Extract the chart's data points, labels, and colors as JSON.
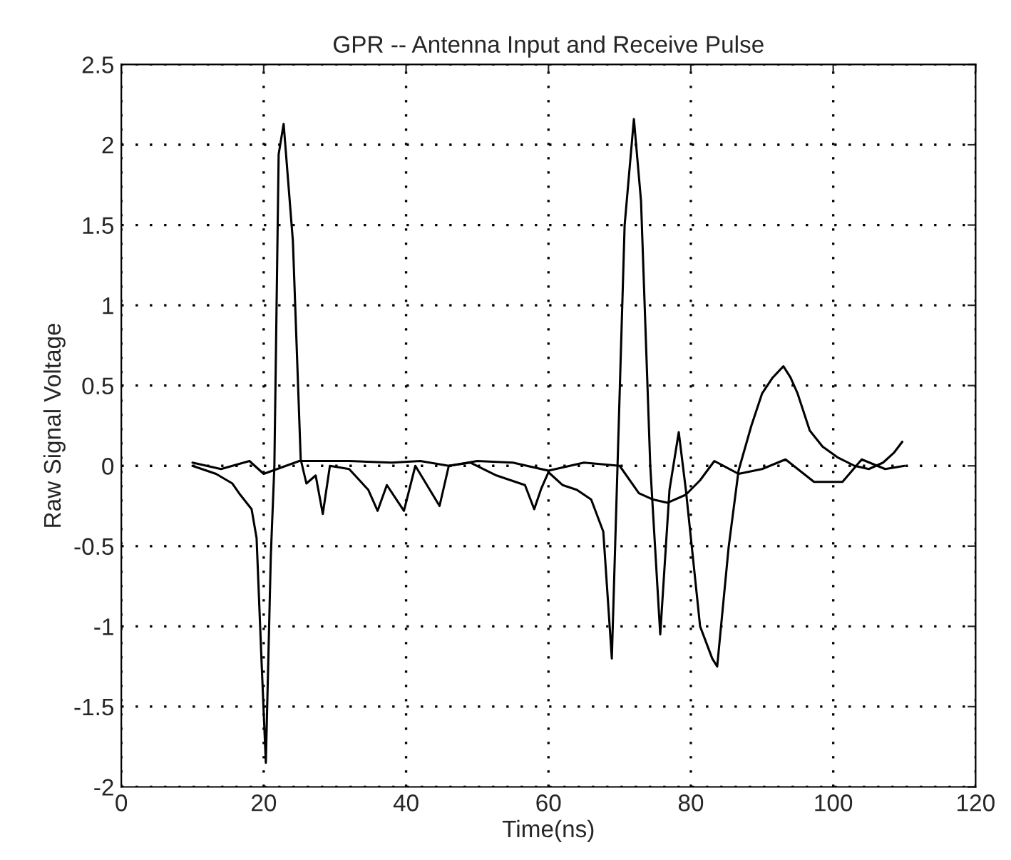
{
  "chart_data": {
    "type": "line",
    "title": "GPR -- Antenna Input and Receive Pulse",
    "xlabel": "Time(ns)",
    "ylabel": "Raw Signal Voltage",
    "xlim": [
      0,
      120
    ],
    "xticks": [
      0,
      20,
      40,
      60,
      80,
      100,
      120
    ],
    "ylim": [
      -2,
      2.5
    ],
    "yticks": [
      -2,
      -1.5,
      -1,
      -0.5,
      0,
      0.5,
      1,
      1.5,
      2,
      2.5
    ],
    "grid": true,
    "line_style": "solid",
    "marker": "none",
    "legend": false,
    "series": [
      {
        "color": "#000000",
        "x": [
          10,
          13.3,
          15.6,
          16.7,
          18.3,
          19,
          19.7,
          20.3,
          21,
          21.5,
          22.1,
          22.8,
          24.1,
          25.2,
          26,
          27.3,
          28.3,
          29.3,
          32,
          34.7,
          36,
          37.3,
          39.7,
          41.3,
          44.7,
          46,
          49,
          52.7,
          56.7,
          58,
          59,
          60,
          62,
          64,
          66,
          67.7,
          68.9,
          69.7,
          70.7,
          72,
          73,
          74.3,
          75.7,
          77,
          78.3,
          79.3,
          81.3,
          83,
          83.7,
          85.3,
          86.7,
          88.5,
          90,
          91.5,
          93,
          94,
          95,
          96.7,
          98.5,
          100.7,
          103,
          105,
          107,
          108.5,
          109.7
        ],
        "values": [
          0,
          -0.05,
          -0.11,
          -0.18,
          -0.27,
          -0.45,
          -1.22,
          -1.85,
          -0.56,
          0,
          1.94,
          2.13,
          1.4,
          0.04,
          -0.11,
          -0.06,
          -0.3,
          0,
          -0.02,
          -0.15,
          -0.28,
          -0.12,
          -0.28,
          0,
          -0.25,
          0,
          0.02,
          -0.06,
          -0.12,
          -0.27,
          -0.14,
          -0.04,
          -0.12,
          -0.15,
          -0.21,
          -0.41,
          -1.2,
          0,
          1.5,
          2.16,
          1.65,
          0,
          -1.05,
          -0.15,
          0.21,
          -0.15,
          -1.0,
          -1.2,
          -1.25,
          -0.51,
          -0.03,
          0.25,
          0.45,
          0.55,
          0.62,
          0.55,
          0.45,
          0.22,
          0.12,
          0.05,
          0.0,
          -0.02,
          0.02,
          0.08,
          0.15
        ]
      },
      {
        "color": "#000000",
        "x": [
          10,
          14,
          18,
          20,
          25,
          32,
          38,
          42,
          46,
          50,
          55,
          60,
          65,
          70,
          72.7,
          74.7,
          76.7,
          79.3,
          81.3,
          83.3,
          86.7,
          90,
          93.3,
          97.3,
          101.3,
          104,
          107.3,
          110
        ],
        "values": [
          0.02,
          -0.02,
          0.03,
          -0.05,
          0.03,
          0.03,
          0.02,
          0.03,
          0,
          0.03,
          0.02,
          -0.03,
          0.02,
          0,
          -0.17,
          -0.21,
          -0.23,
          -0.18,
          -0.09,
          0.03,
          -0.05,
          -0.02,
          0.04,
          -0.1,
          -0.1,
          0.04,
          -0.02,
          0
        ]
      }
    ]
  }
}
